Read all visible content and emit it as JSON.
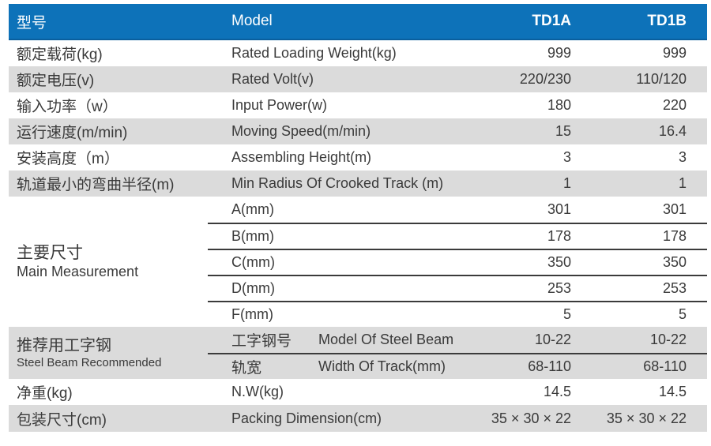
{
  "colors": {
    "header_blue": "#0d72b9",
    "header_blue_edge": "#0a5f9e",
    "stripe_gray": "#dbdbdb",
    "text": "#3a3a3a",
    "separator_line": "#3b3b3b"
  },
  "header": {
    "col_cn": "型号",
    "col_en": "Model",
    "col_a": "TD1A",
    "col_b": "TD1B"
  },
  "rows": [
    {
      "cn": "额定载荷(kg)",
      "en": "Rated Loading Weight(kg)",
      "td1a": "999",
      "td1b": "999"
    },
    {
      "cn": "额定电压(v)",
      "en": "Rated Volt(v)",
      "td1a": "220/230",
      "td1b": "110/120"
    },
    {
      "cn": "输入功率（w）",
      "en": "Input Power(w)",
      "td1a": "180",
      "td1b": "220"
    },
    {
      "cn": "运行速度(m/min)",
      "en": "Moving Speed(m/min)",
      "td1a": "15",
      "td1b": "16.4"
    },
    {
      "cn": "安装高度（m）",
      "en": "Assembling Height(m)",
      "td1a": "3",
      "td1b": "3"
    },
    {
      "cn": "轨道最小的弯曲半径(m)",
      "en": "Min Radius Of Crooked Track (m)",
      "td1a": "1",
      "td1b": "1"
    }
  ],
  "main_measurement": {
    "cn": "主要尺寸",
    "en": "Main Measurement",
    "rows": [
      {
        "label": "A(mm)",
        "td1a": "301",
        "td1b": "301"
      },
      {
        "label": "B(mm)",
        "td1a": "178",
        "td1b": "178"
      },
      {
        "label": "C(mm)",
        "td1a": "350",
        "td1b": "350"
      },
      {
        "label": "D(mm)",
        "td1a": "253",
        "td1b": "253"
      },
      {
        "label": "F(mm)",
        "td1a": "5",
        "td1b": "5"
      }
    ]
  },
  "steel_beam": {
    "cn": "推荐用工字钢",
    "en": "Steel Beam Recommended",
    "rows": [
      {
        "cn": "工字钢号",
        "en": "Model Of Steel Beam",
        "td1a": "10-22",
        "td1b": "10-22"
      },
      {
        "cn": "轨宽",
        "en": "Width Of Track(mm)",
        "td1a": "68-110",
        "td1b": "68-110"
      }
    ]
  },
  "bottom_rows": [
    {
      "cn": "净重(kg)",
      "en": "N.W(kg)",
      "td1a": "14.5",
      "td1b": "14.5"
    },
    {
      "cn": "包装尺寸(cm)",
      "en": "Packing Dimension(cm)",
      "td1a": "35 × 30 × 22",
      "td1b": "35 × 30 × 22"
    }
  ]
}
